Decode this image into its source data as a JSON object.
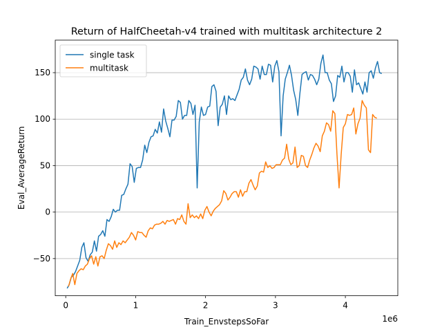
{
  "chart_data": {
    "type": "line",
    "title": "Return of HalfCheetah-v4 trained with multitask architecture 2",
    "xlabel": "Train_EnvstepsSoFar",
    "ylabel": "Eval_AverageReturn",
    "x_offset_label": "1e6",
    "xlim": [
      -0.15,
      4.75
    ],
    "ylim": [
      -90,
      185
    ],
    "x_ticks": [
      0,
      1,
      2,
      3,
      4
    ],
    "x_tick_labels": [
      "0",
      "1",
      "2",
      "3",
      "4"
    ],
    "y_ticks": [
      -50,
      0,
      50,
      100,
      150
    ],
    "y_tick_labels": [
      "−50",
      "0",
      "50",
      "100",
      "150"
    ],
    "grid": "y-major",
    "legend_position": "top-left",
    "series": [
      {
        "name": "single task",
        "color": "#1f77b4",
        "points": [
          [
            0.02,
            -82
          ],
          [
            0.05,
            -78
          ],
          [
            0.08,
            -70
          ],
          [
            0.11,
            -68
          ],
          [
            0.14,
            -64
          ],
          [
            0.17,
            -58
          ],
          [
            0.2,
            -52
          ],
          [
            0.23,
            -38
          ],
          [
            0.26,
            -33
          ],
          [
            0.29,
            -49
          ],
          [
            0.32,
            -53
          ],
          [
            0.35,
            -46
          ],
          [
            0.38,
            -43
          ],
          [
            0.41,
            -31
          ],
          [
            0.44,
            -42
          ],
          [
            0.47,
            -26
          ],
          [
            0.5,
            -24
          ],
          [
            0.53,
            -20
          ],
          [
            0.56,
            -26
          ],
          [
            0.59,
            -8
          ],
          [
            0.62,
            -10
          ],
          [
            0.65,
            -5
          ],
          [
            0.68,
            3
          ],
          [
            0.71,
            0
          ],
          [
            0.74,
            2
          ],
          [
            0.77,
            2
          ],
          [
            0.8,
            18
          ],
          [
            0.83,
            19
          ],
          [
            0.86,
            25
          ],
          [
            0.89,
            30
          ],
          [
            0.92,
            52
          ],
          [
            0.95,
            49
          ],
          [
            0.98,
            32
          ],
          [
            1.01,
            47
          ],
          [
            1.04,
            48
          ],
          [
            1.07,
            48
          ],
          [
            1.1,
            56
          ],
          [
            1.13,
            72
          ],
          [
            1.16,
            64
          ],
          [
            1.19,
            75
          ],
          [
            1.22,
            81
          ],
          [
            1.25,
            82
          ],
          [
            1.28,
            89
          ],
          [
            1.31,
            85
          ],
          [
            1.34,
            97
          ],
          [
            1.37,
            86
          ],
          [
            1.4,
            111
          ],
          [
            1.43,
            98
          ],
          [
            1.46,
            90
          ],
          [
            1.49,
            81
          ],
          [
            1.52,
            99
          ],
          [
            1.55,
            99
          ],
          [
            1.58,
            103
          ],
          [
            1.61,
            120
          ],
          [
            1.64,
            118
          ],
          [
            1.67,
            100
          ],
          [
            1.7,
            104
          ],
          [
            1.73,
            104
          ],
          [
            1.76,
            120
          ],
          [
            1.79,
            117
          ],
          [
            1.82,
            105
          ],
          [
            1.85,
            115
          ],
          [
            1.88,
            26
          ],
          [
            1.91,
            97
          ],
          [
            1.94,
            113
          ],
          [
            1.97,
            104
          ],
          [
            2.0,
            105
          ],
          [
            2.03,
            113
          ],
          [
            2.06,
            114
          ],
          [
            2.09,
            135
          ],
          [
            2.12,
            137
          ],
          [
            2.15,
            130
          ],
          [
            2.18,
            93
          ],
          [
            2.21,
            113
          ],
          [
            2.24,
            116
          ],
          [
            2.27,
            125
          ],
          [
            2.3,
            105
          ],
          [
            2.33,
            125
          ],
          [
            2.36,
            121
          ],
          [
            2.39,
            122
          ],
          [
            2.42,
            120
          ],
          [
            2.45,
            126
          ],
          [
            2.48,
            132
          ],
          [
            2.51,
            142
          ],
          [
            2.54,
            145
          ],
          [
            2.57,
            154
          ],
          [
            2.6,
            142
          ],
          [
            2.63,
            137
          ],
          [
            2.66,
            143
          ],
          [
            2.69,
            157
          ],
          [
            2.72,
            156
          ],
          [
            2.75,
            154
          ],
          [
            2.78,
            143
          ],
          [
            2.81,
            157
          ],
          [
            2.84,
            148
          ],
          [
            2.87,
            148
          ],
          [
            2.9,
            159
          ],
          [
            2.93,
            158
          ],
          [
            2.96,
            140
          ],
          [
            2.99,
            157
          ],
          [
            3.02,
            163
          ],
          [
            3.05,
            151
          ],
          [
            3.08,
            82
          ],
          [
            3.11,
            125
          ],
          [
            3.14,
            143
          ],
          [
            3.17,
            150
          ],
          [
            3.2,
            158
          ],
          [
            3.23,
            147
          ],
          [
            3.26,
            131
          ],
          [
            3.29,
            121
          ],
          [
            3.32,
            104
          ],
          [
            3.35,
            128
          ],
          [
            3.38,
            148
          ],
          [
            3.41,
            150
          ],
          [
            3.44,
            151
          ],
          [
            3.47,
            142
          ],
          [
            3.5,
            148
          ],
          [
            3.53,
            147
          ],
          [
            3.56,
            143
          ],
          [
            3.59,
            137
          ],
          [
            3.62,
            143
          ],
          [
            3.65,
            160
          ],
          [
            3.68,
            169
          ],
          [
            3.71,
            150
          ],
          [
            3.74,
            150
          ],
          [
            3.77,
            142
          ],
          [
            3.8,
            138
          ],
          [
            3.83,
            119
          ],
          [
            3.86,
            125
          ],
          [
            3.89,
            147
          ],
          [
            3.92,
            145
          ],
          [
            3.95,
            157
          ],
          [
            3.98,
            140
          ],
          [
            4.01,
            150
          ],
          [
            4.04,
            150
          ],
          [
            4.07,
            146
          ],
          [
            4.1,
            129
          ],
          [
            4.13,
            153
          ],
          [
            4.16,
            137
          ],
          [
            4.19,
            139
          ],
          [
            4.22,
            133
          ],
          [
            4.25,
            127
          ],
          [
            4.28,
            140
          ],
          [
            4.31,
            129
          ],
          [
            4.34,
            150
          ],
          [
            4.37,
            152
          ],
          [
            4.4,
            144
          ],
          [
            4.43,
            155
          ],
          [
            4.46,
            162
          ],
          [
            4.49,
            150
          ],
          [
            4.52,
            149
          ]
        ]
      },
      {
        "name": "multitask",
        "color": "#ff7f0e",
        "points": [
          [
            0.04,
            -80
          ],
          [
            0.07,
            -72
          ],
          [
            0.1,
            -66
          ],
          [
            0.13,
            -78
          ],
          [
            0.16,
            -66
          ],
          [
            0.19,
            -63
          ],
          [
            0.22,
            -61
          ],
          [
            0.25,
            -62
          ],
          [
            0.28,
            -58
          ],
          [
            0.31,
            -56
          ],
          [
            0.34,
            -50
          ],
          [
            0.37,
            -47
          ],
          [
            0.4,
            -56
          ],
          [
            0.43,
            -48
          ],
          [
            0.46,
            -58
          ],
          [
            0.49,
            -48
          ],
          [
            0.52,
            -47
          ],
          [
            0.55,
            -50
          ],
          [
            0.58,
            -41
          ],
          [
            0.61,
            -34
          ],
          [
            0.64,
            -36
          ],
          [
            0.67,
            -40
          ],
          [
            0.7,
            -31
          ],
          [
            0.73,
            -38
          ],
          [
            0.76,
            -33
          ],
          [
            0.79,
            -35
          ],
          [
            0.82,
            -31
          ],
          [
            0.85,
            -33
          ],
          [
            0.88,
            -30
          ],
          [
            0.91,
            -27
          ],
          [
            0.94,
            -22
          ],
          [
            0.97,
            -25
          ],
          [
            1.0,
            -30
          ],
          [
            1.03,
            -21
          ],
          [
            1.06,
            -22
          ],
          [
            1.09,
            -22
          ],
          [
            1.12,
            -25
          ],
          [
            1.15,
            -27
          ],
          [
            1.18,
            -20
          ],
          [
            1.21,
            -17
          ],
          [
            1.24,
            -18
          ],
          [
            1.27,
            -14
          ],
          [
            1.3,
            -13
          ],
          [
            1.33,
            -13
          ],
          [
            1.36,
            -12
          ],
          [
            1.39,
            -10
          ],
          [
            1.42,
            -13
          ],
          [
            1.45,
            -9
          ],
          [
            1.48,
            -10
          ],
          [
            1.51,
            -9
          ],
          [
            1.54,
            -8
          ],
          [
            1.57,
            -13
          ],
          [
            1.6,
            -7
          ],
          [
            1.63,
            -8
          ],
          [
            1.66,
            -3
          ],
          [
            1.69,
            -10
          ],
          [
            1.72,
            -13
          ],
          [
            1.75,
            9
          ],
          [
            1.78,
            -6
          ],
          [
            1.81,
            -3
          ],
          [
            1.84,
            -6
          ],
          [
            1.87,
            -4
          ],
          [
            1.9,
            -7
          ],
          [
            1.93,
            -2
          ],
          [
            1.96,
            -7
          ],
          [
            1.99,
            2
          ],
          [
            2.02,
            6
          ],
          [
            2.05,
            0
          ],
          [
            2.08,
            -4
          ],
          [
            2.11,
            1
          ],
          [
            2.14,
            4
          ],
          [
            2.17,
            6
          ],
          [
            2.2,
            8
          ],
          [
            2.23,
            12
          ],
          [
            2.26,
            23
          ],
          [
            2.29,
            20
          ],
          [
            2.32,
            13
          ],
          [
            2.35,
            16
          ],
          [
            2.38,
            20
          ],
          [
            2.41,
            22
          ],
          [
            2.44,
            22
          ],
          [
            2.47,
            16
          ],
          [
            2.5,
            24
          ],
          [
            2.53,
            17
          ],
          [
            2.56,
            22
          ],
          [
            2.59,
            22
          ],
          [
            2.62,
            31
          ],
          [
            2.65,
            35
          ],
          [
            2.68,
            29
          ],
          [
            2.71,
            24
          ],
          [
            2.74,
            28
          ],
          [
            2.77,
            42
          ],
          [
            2.8,
            44
          ],
          [
            2.83,
            43
          ],
          [
            2.86,
            54
          ],
          [
            2.89,
            48
          ],
          [
            2.92,
            50
          ],
          [
            2.95,
            47
          ],
          [
            2.98,
            48
          ],
          [
            3.01,
            51
          ],
          [
            3.04,
            51
          ],
          [
            3.07,
            51
          ],
          [
            3.1,
            56
          ],
          [
            3.13,
            58
          ],
          [
            3.16,
            73
          ],
          [
            3.19,
            57
          ],
          [
            3.22,
            51
          ],
          [
            3.25,
            53
          ],
          [
            3.28,
            70
          ],
          [
            3.31,
            48
          ],
          [
            3.34,
            50
          ],
          [
            3.37,
            61
          ],
          [
            3.4,
            60
          ],
          [
            3.43,
            50
          ],
          [
            3.46,
            48
          ],
          [
            3.49,
            56
          ],
          [
            3.52,
            62
          ],
          [
            3.55,
            69
          ],
          [
            3.58,
            74
          ],
          [
            3.61,
            71
          ],
          [
            3.64,
            65
          ],
          [
            3.67,
            82
          ],
          [
            3.7,
            87
          ],
          [
            3.73,
            96
          ],
          [
            3.76,
            94
          ],
          [
            3.79,
            87
          ],
          [
            3.82,
            109
          ],
          [
            3.85,
            106
          ],
          [
            3.88,
            62
          ],
          [
            3.91,
            26
          ],
          [
            3.94,
            62
          ],
          [
            3.97,
            91
          ],
          [
            4.0,
            95
          ],
          [
            4.03,
            105
          ],
          [
            4.06,
            104
          ],
          [
            4.09,
            105
          ],
          [
            4.12,
            112
          ],
          [
            4.15,
            84
          ],
          [
            4.18,
            95
          ],
          [
            4.21,
            101
          ],
          [
            4.24,
            120
          ],
          [
            4.27,
            115
          ],
          [
            4.3,
            112
          ],
          [
            4.33,
            67
          ],
          [
            4.36,
            64
          ],
          [
            4.39,
            105
          ],
          [
            4.42,
            102
          ],
          [
            4.45,
            101
          ]
        ]
      }
    ]
  }
}
